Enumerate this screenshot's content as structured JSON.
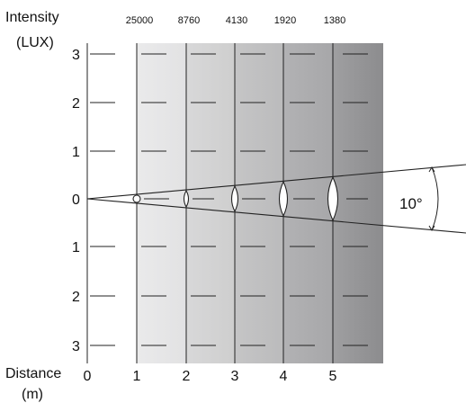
{
  "labels": {
    "intensity_line1": "Intensity",
    "intensity_line2": "(LUX)",
    "distance_line1": "Distance",
    "distance_line2": "(m)",
    "angle": "10°"
  },
  "y_ticks": [
    "3",
    "2",
    "1",
    "0",
    "1",
    "2",
    "3"
  ],
  "x_ticks": [
    "0",
    "1",
    "2",
    "3",
    "4",
    "5"
  ],
  "lux_values": [
    "25000",
    "8760",
    "4130",
    "1920",
    "1380"
  ],
  "colors": {
    "band_1": "#e6e6e7",
    "band_2": "#d3d3d4",
    "band_3": "#c0c0c1",
    "band_4": "#acacae",
    "band_5": "#99999b",
    "right_edge": "#8a8a8c",
    "line": "#222222",
    "beam_spot_fill": "#ffffff"
  },
  "icons": {
    "beam_spot": "lens-ellipse",
    "angle_marker": "double-arrow-arc"
  }
}
